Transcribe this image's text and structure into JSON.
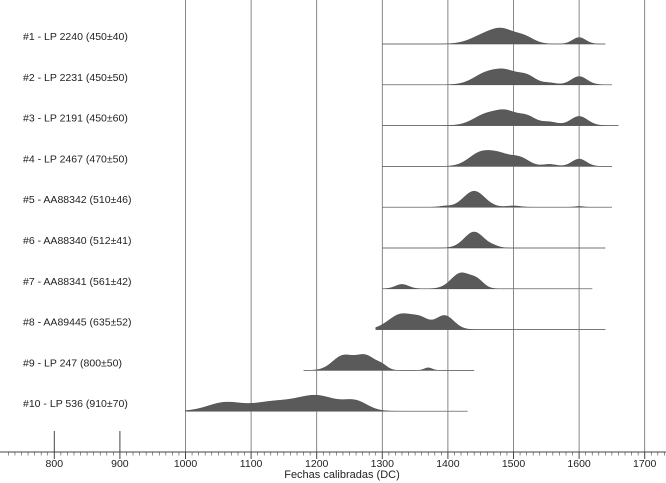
{
  "chart_data": {
    "type": "area",
    "xlabel": "Fechas calibradas (DC)",
    "xlim": [
      730,
      1740
    ],
    "x_ticks": [
      "800",
      "900",
      "1000",
      "1100",
      "1200",
      "1300",
      "1400",
      "1500",
      "1600",
      "1700"
    ],
    "grid": "vertical lines at 1000-1700",
    "series": [
      {
        "name": "#1 - LP 2240 (450±40)",
        "range": [
          1300,
          1640
        ],
        "peaks": [
          [
            1460,
            22,
            1
          ],
          [
            1485,
            16,
            0.95
          ],
          [
            1515,
            15,
            0.75
          ],
          [
            1600,
            10,
            0.65
          ]
        ]
      },
      {
        "name": "#2 - LP 2231 (450±50)",
        "range": [
          1300,
          1650
        ],
        "peaks": [
          [
            1460,
            20,
            1
          ],
          [
            1490,
            16,
            0.9
          ],
          [
            1520,
            14,
            0.75
          ],
          [
            1555,
            10,
            0.15
          ],
          [
            1600,
            12,
            0.7
          ]
        ]
      },
      {
        "name": "#3 - LP 2191 (450±60)",
        "range": [
          1300,
          1660
        ],
        "peaks": [
          [
            1460,
            20,
            1
          ],
          [
            1490,
            15,
            0.95
          ],
          [
            1520,
            14,
            0.8
          ],
          [
            1555,
            12,
            0.3
          ],
          [
            1600,
            13,
            0.8
          ]
        ]
      },
      {
        "name": "#4 - LP 2467 (470±50)",
        "range": [
          1300,
          1650
        ],
        "peaks": [
          [
            1450,
            18,
            1
          ],
          [
            1480,
            16,
            0.75
          ],
          [
            1510,
            14,
            0.6
          ],
          [
            1555,
            10,
            0.15
          ],
          [
            1600,
            11,
            0.55
          ]
        ]
      },
      {
        "name": "#5 - AA88342 (510±46)",
        "range": [
          1300,
          1650
        ],
        "peaks": [
          [
            1395,
            8,
            0.06
          ],
          [
            1440,
            16,
            1
          ],
          [
            1500,
            10,
            0.08
          ],
          [
            1600,
            6,
            0.05
          ]
        ]
      },
      {
        "name": "#6 - AA88340 (512±41)",
        "range": [
          1300,
          1640
        ],
        "peaks": [
          [
            1440,
            15,
            1
          ],
          [
            1470,
            8,
            0.08
          ]
        ]
      },
      {
        "name": "#7 - AA88341 (561±42)",
        "range": [
          1300,
          1620
        ],
        "peaks": [
          [
            1330,
            10,
            0.28
          ],
          [
            1420,
            15,
            1
          ],
          [
            1445,
            10,
            0.45
          ]
        ]
      },
      {
        "name": "#8 - AA89445 (635±52)",
        "range": [
          1290,
          1640
        ],
        "peaks": [
          [
            1330,
            20,
            0.95
          ],
          [
            1360,
            12,
            0.45
          ],
          [
            1395,
            14,
            0.85
          ]
        ]
      },
      {
        "name": "#9 - LP 247 (800±50)",
        "range": [
          1180,
          1440
        ],
        "peaks": [
          [
            1240,
            16,
            1
          ],
          [
            1275,
            15,
            1
          ],
          [
            1300,
            8,
            0.25
          ],
          [
            1370,
            6,
            0.18
          ]
        ]
      },
      {
        "name": "#10 - LP 536 (910±70)",
        "range": [
          1000,
          1430
        ],
        "peaks": [
          [
            1060,
            26,
            0.55
          ],
          [
            1130,
            30,
            0.55
          ],
          [
            1200,
            32,
            1
          ],
          [
            1260,
            18,
            0.55
          ]
        ]
      }
    ]
  }
}
